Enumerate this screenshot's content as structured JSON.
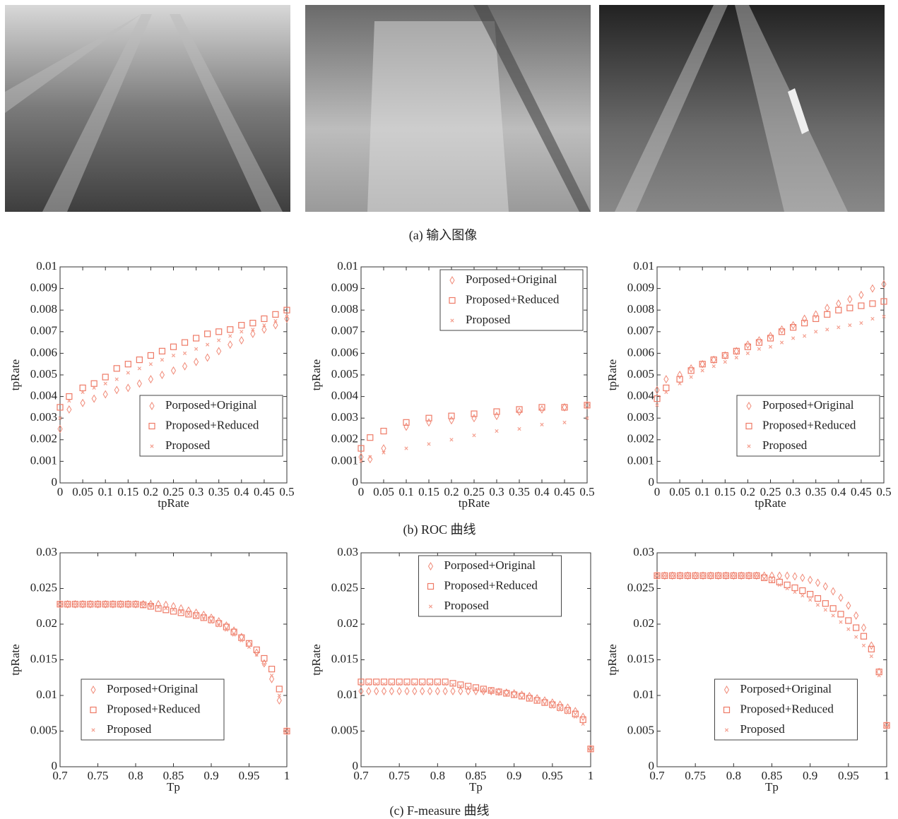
{
  "captions": [
    "(a)  输入图像",
    "(b)  ROC 曲线",
    "(c)  F-measure 曲线"
  ],
  "chart_data": [
    {
      "type": "scatter",
      "xlabel": "tpRate",
      "ylabel": "tpRate",
      "legend_loc": "lower right",
      "x": [
        0,
        0.02,
        0.05,
        0.075,
        0.1,
        0.125,
        0.15,
        0.175,
        0.2,
        0.225,
        0.25,
        0.275,
        0.3,
        0.325,
        0.35,
        0.375,
        0.4,
        0.425,
        0.45,
        0.475,
        0.5
      ],
      "xlim": [
        0,
        0.5
      ],
      "ylim": [
        0,
        0.01
      ],
      "xticks": [
        0,
        0.05,
        0.1,
        0.15,
        0.2,
        0.25,
        0.3,
        0.35,
        0.4,
        0.45,
        0.5
      ],
      "yticks": [
        0,
        0.001,
        0.002,
        0.003,
        0.004,
        0.005,
        0.006,
        0.007,
        0.008,
        0.009,
        0.01
      ],
      "series": [
        {
          "name": "Porposed+Original",
          "color": "#f08a78",
          "marker": "diamond",
          "values": [
            0.0025,
            0.0034,
            0.0037,
            0.0039,
            0.0041,
            0.0043,
            0.0044,
            0.0046,
            0.0048,
            0.005,
            0.0052,
            0.0054,
            0.0056,
            0.0058,
            0.0061,
            0.0064,
            0.0066,
            0.0069,
            0.0071,
            0.0073,
            0.0076
          ]
        },
        {
          "name": "Proposed+Reduced",
          "color": "#ee7a66",
          "marker": "square",
          "values": [
            0.0035,
            0.004,
            0.0044,
            0.0046,
            0.0049,
            0.0053,
            0.0055,
            0.0057,
            0.0059,
            0.0061,
            0.0063,
            0.0065,
            0.0067,
            0.0069,
            0.007,
            0.0071,
            0.0073,
            0.0074,
            0.0076,
            0.0078,
            0.008
          ]
        },
        {
          "name": "Proposed",
          "color": "#f4a090",
          "marker": "x",
          "values": [
            0.003,
            0.0038,
            0.0042,
            0.0044,
            0.0046,
            0.0048,
            0.0051,
            0.0053,
            0.0055,
            0.0057,
            0.0059,
            0.006,
            0.0062,
            0.0064,
            0.0066,
            0.0068,
            0.007,
            0.0071,
            0.0073,
            0.0075,
            0.0077
          ]
        }
      ]
    },
    {
      "type": "scatter",
      "xlabel": "tpRate",
      "ylabel": "tpRate",
      "legend_loc": "upper right",
      "x": [
        0,
        0.02,
        0.05,
        0.1,
        0.15,
        0.2,
        0.25,
        0.3,
        0.35,
        0.4,
        0.45,
        0.5
      ],
      "xlim": [
        0,
        0.5
      ],
      "ylim": [
        0,
        0.01
      ],
      "xticks": [
        0,
        0.05,
        0.1,
        0.15,
        0.2,
        0.25,
        0.3,
        0.35,
        0.4,
        0.45,
        0.5
      ],
      "yticks": [
        0,
        0.001,
        0.002,
        0.003,
        0.004,
        0.005,
        0.006,
        0.007,
        0.008,
        0.009,
        0.01
      ],
      "series": [
        {
          "name": "Porposed+Original",
          "color": "#f08a78",
          "marker": "diamond",
          "values": [
            0.0012,
            0.0011,
            0.0016,
            0.0026,
            0.0028,
            0.0029,
            0.003,
            0.0031,
            0.0033,
            0.0034,
            0.0035,
            0.0036
          ]
        },
        {
          "name": "Proposed+Reduced",
          "color": "#ee7a66",
          "marker": "square",
          "values": [
            0.0016,
            0.0021,
            0.0024,
            0.0028,
            0.003,
            0.0031,
            0.0032,
            0.0033,
            0.0034,
            0.0035,
            0.0035,
            0.0036
          ]
        },
        {
          "name": "Proposed",
          "color": "#f4a090",
          "marker": "x",
          "values": [
            0.001,
            0.0012,
            0.0014,
            0.0016,
            0.0018,
            0.002,
            0.0022,
            0.0024,
            0.0025,
            0.0027,
            0.0028,
            0.003
          ]
        }
      ]
    },
    {
      "type": "scatter",
      "xlabel": "tpRate",
      "ylabel": "tpRate",
      "legend_loc": "lower right",
      "x": [
        0,
        0.02,
        0.05,
        0.075,
        0.1,
        0.125,
        0.15,
        0.175,
        0.2,
        0.225,
        0.25,
        0.275,
        0.3,
        0.325,
        0.35,
        0.375,
        0.4,
        0.425,
        0.45,
        0.475,
        0.5
      ],
      "xlim": [
        0,
        0.5
      ],
      "ylim": [
        0,
        0.01
      ],
      "xticks": [
        0,
        0.05,
        0.1,
        0.15,
        0.2,
        0.25,
        0.3,
        0.35,
        0.4,
        0.45,
        0.5
      ],
      "yticks": [
        0,
        0.001,
        0.002,
        0.003,
        0.004,
        0.005,
        0.006,
        0.007,
        0.008,
        0.009,
        0.01
      ],
      "series": [
        {
          "name": "Porposed+Original",
          "color": "#f08a78",
          "marker": "diamond",
          "values": [
            0.0043,
            0.0048,
            0.005,
            0.0053,
            0.0055,
            0.0057,
            0.0059,
            0.0061,
            0.0064,
            0.0066,
            0.0068,
            0.0071,
            0.0073,
            0.0076,
            0.0078,
            0.0081,
            0.0083,
            0.0085,
            0.0087,
            0.009,
            0.0092
          ]
        },
        {
          "name": "Proposed+Reduced",
          "color": "#ee7a66",
          "marker": "square",
          "values": [
            0.0039,
            0.0044,
            0.0048,
            0.0052,
            0.0055,
            0.0057,
            0.0059,
            0.0061,
            0.0063,
            0.0065,
            0.0067,
            0.007,
            0.0072,
            0.0074,
            0.0076,
            0.0078,
            0.008,
            0.0081,
            0.0082,
            0.0083,
            0.0084
          ]
        },
        {
          "name": "Proposed",
          "color": "#f4a090",
          "marker": "x",
          "values": [
            0.0036,
            0.0042,
            0.0046,
            0.0049,
            0.0052,
            0.0054,
            0.0056,
            0.0058,
            0.006,
            0.0062,
            0.0063,
            0.0065,
            0.0067,
            0.0068,
            0.007,
            0.0071,
            0.0072,
            0.0073,
            0.0074,
            0.0076,
            0.0077
          ]
        }
      ]
    },
    {
      "type": "scatter",
      "xlabel": "Tp",
      "ylabel": "tpRate",
      "legend_loc": "lower left",
      "x": [
        0.7,
        0.71,
        0.72,
        0.73,
        0.74,
        0.75,
        0.76,
        0.77,
        0.78,
        0.79,
        0.8,
        0.81,
        0.82,
        0.83,
        0.84,
        0.85,
        0.86,
        0.87,
        0.88,
        0.89,
        0.9,
        0.91,
        0.92,
        0.93,
        0.94,
        0.95,
        0.96,
        0.97,
        0.98,
        0.99,
        1
      ],
      "xlim": [
        0.7,
        1
      ],
      "ylim": [
        0,
        0.03
      ],
      "xticks": [
        0.7,
        0.75,
        0.8,
        0.85,
        0.9,
        0.95,
        1
      ],
      "yticks": [
        0,
        0.005,
        0.01,
        0.015,
        0.02,
        0.025,
        0.03
      ],
      "series": [
        {
          "name": "Porposed+Original",
          "color": "#f08a78",
          "marker": "diamond",
          "values": [
            0.0228,
            0.0228,
            0.0228,
            0.0228,
            0.0228,
            0.0228,
            0.0228,
            0.0228,
            0.0228,
            0.0228,
            0.0228,
            0.0228,
            0.0228,
            0.0228,
            0.0227,
            0.0225,
            0.0222,
            0.0219,
            0.0216,
            0.0213,
            0.0209,
            0.0204,
            0.0198,
            0.0191,
            0.0182,
            0.0172,
            0.016,
            0.0145,
            0.0123,
            0.0093,
            0.005
          ]
        },
        {
          "name": "Proposed+Reduced",
          "color": "#ee7a66",
          "marker": "square",
          "values": [
            0.0228,
            0.0228,
            0.0228,
            0.0228,
            0.0228,
            0.0228,
            0.0228,
            0.0228,
            0.0228,
            0.0228,
            0.0228,
            0.0227,
            0.0225,
            0.0222,
            0.022,
            0.0218,
            0.0216,
            0.0214,
            0.0212,
            0.0209,
            0.0206,
            0.0201,
            0.0196,
            0.0189,
            0.0181,
            0.0173,
            0.0164,
            0.0152,
            0.0137,
            0.0109,
            0.005
          ]
        },
        {
          "name": "Proposed",
          "color": "#f4a090",
          "marker": "x",
          "values": [
            0.0228,
            0.0228,
            0.0228,
            0.0228,
            0.0228,
            0.0228,
            0.0228,
            0.0228,
            0.0228,
            0.0228,
            0.0228,
            0.0228,
            0.0226,
            0.0224,
            0.0222,
            0.022,
            0.0217,
            0.0214,
            0.0211,
            0.0207,
            0.0203,
            0.0198,
            0.0192,
            0.0185,
            0.0177,
            0.0168,
            0.0157,
            0.0144,
            0.0128,
            0.01,
            0.005
          ]
        }
      ]
    },
    {
      "type": "scatter",
      "xlabel": "Tp",
      "ylabel": "tpRate",
      "legend_loc": "upper center",
      "x": [
        0.7,
        0.71,
        0.72,
        0.73,
        0.74,
        0.75,
        0.76,
        0.77,
        0.78,
        0.79,
        0.8,
        0.81,
        0.82,
        0.83,
        0.84,
        0.85,
        0.86,
        0.87,
        0.88,
        0.89,
        0.9,
        0.91,
        0.92,
        0.93,
        0.94,
        0.95,
        0.96,
        0.97,
        0.98,
        0.99,
        1
      ],
      "xlim": [
        0.7,
        1
      ],
      "ylim": [
        0,
        0.03
      ],
      "xticks": [
        0.7,
        0.75,
        0.8,
        0.85,
        0.9,
        0.95,
        1
      ],
      "yticks": [
        0,
        0.005,
        0.01,
        0.015,
        0.02,
        0.025,
        0.03
      ],
      "series": [
        {
          "name": "Porposed+Original",
          "color": "#f08a78",
          "marker": "diamond",
          "values": [
            0.0106,
            0.0106,
            0.0106,
            0.0106,
            0.0106,
            0.0106,
            0.0106,
            0.0106,
            0.0106,
            0.0106,
            0.0106,
            0.0106,
            0.0106,
            0.0106,
            0.0106,
            0.0106,
            0.0106,
            0.0106,
            0.0105,
            0.0104,
            0.0103,
            0.0101,
            0.0099,
            0.0096,
            0.0093,
            0.009,
            0.0087,
            0.0083,
            0.0078,
            0.007,
            0.0025
          ]
        },
        {
          "name": "Proposed+Reduced",
          "color": "#ee7a66",
          "marker": "square",
          "values": [
            0.0119,
            0.0119,
            0.0119,
            0.0119,
            0.0119,
            0.0119,
            0.0119,
            0.0119,
            0.0119,
            0.0119,
            0.0119,
            0.0119,
            0.0117,
            0.0115,
            0.0113,
            0.0111,
            0.0109,
            0.0107,
            0.0105,
            0.0103,
            0.0101,
            0.0099,
            0.0096,
            0.0093,
            0.009,
            0.0087,
            0.0083,
            0.0079,
            0.0074,
            0.0066,
            0.0025
          ]
        },
        {
          "name": "Proposed",
          "color": "#f4a090",
          "marker": "x",
          "values": [
            0.0116,
            0.0116,
            0.0116,
            0.0116,
            0.0116,
            0.0116,
            0.0116,
            0.0116,
            0.0116,
            0.0116,
            0.0116,
            0.0116,
            0.0115,
            0.0113,
            0.0111,
            0.0109,
            0.0107,
            0.0105,
            0.0103,
            0.0101,
            0.0099,
            0.0097,
            0.0094,
            0.0091,
            0.0088,
            0.0084,
            0.008,
            0.0076,
            0.007,
            0.006,
            0.0023
          ]
        }
      ]
    },
    {
      "type": "scatter",
      "xlabel": "Tp",
      "ylabel": "tpRate",
      "legend_loc": "lower center",
      "x": [
        0.7,
        0.71,
        0.72,
        0.73,
        0.74,
        0.75,
        0.76,
        0.77,
        0.78,
        0.79,
        0.8,
        0.81,
        0.82,
        0.83,
        0.84,
        0.85,
        0.86,
        0.87,
        0.88,
        0.89,
        0.9,
        0.91,
        0.92,
        0.93,
        0.94,
        0.95,
        0.96,
        0.97,
        0.98,
        0.99,
        1
      ],
      "xlim": [
        0.7,
        1
      ],
      "ylim": [
        0,
        0.03
      ],
      "xticks": [
        0.7,
        0.75,
        0.8,
        0.85,
        0.9,
        0.95,
        1
      ],
      "yticks": [
        0,
        0.005,
        0.01,
        0.015,
        0.02,
        0.025,
        0.03
      ],
      "series": [
        {
          "name": "Porposed+Original",
          "color": "#f08a78",
          "marker": "diamond",
          "values": [
            0.0268,
            0.0268,
            0.0268,
            0.0268,
            0.0268,
            0.0268,
            0.0268,
            0.0268,
            0.0268,
            0.0268,
            0.0268,
            0.0268,
            0.0268,
            0.0268,
            0.0268,
            0.0268,
            0.0268,
            0.0268,
            0.0267,
            0.0265,
            0.0262,
            0.0258,
            0.0253,
            0.0246,
            0.0237,
            0.0226,
            0.0212,
            0.0195,
            0.017,
            0.0133,
            0.0058
          ]
        },
        {
          "name": "Proposed+Reduced",
          "color": "#ee7a66",
          "marker": "square",
          "values": [
            0.0268,
            0.0268,
            0.0268,
            0.0268,
            0.0268,
            0.0268,
            0.0268,
            0.0268,
            0.0268,
            0.0268,
            0.0268,
            0.0268,
            0.0268,
            0.0268,
            0.0265,
            0.0262,
            0.0259,
            0.0255,
            0.0251,
            0.0247,
            0.0242,
            0.0236,
            0.0229,
            0.0222,
            0.0214,
            0.0205,
            0.0195,
            0.0183,
            0.0165,
            0.0133,
            0.0058
          ]
        },
        {
          "name": "Proposed",
          "color": "#f4a090",
          "marker": "x",
          "values": [
            0.0268,
            0.0268,
            0.0268,
            0.0268,
            0.0268,
            0.0268,
            0.0268,
            0.0268,
            0.0268,
            0.0268,
            0.0268,
            0.0268,
            0.0268,
            0.0268,
            0.0264,
            0.026,
            0.0255,
            0.025,
            0.0245,
            0.024,
            0.0234,
            0.0227,
            0.022,
            0.0212,
            0.0203,
            0.0193,
            0.0182,
            0.017,
            0.0155,
            0.0128,
            0.0056
          ]
        }
      ]
    }
  ]
}
